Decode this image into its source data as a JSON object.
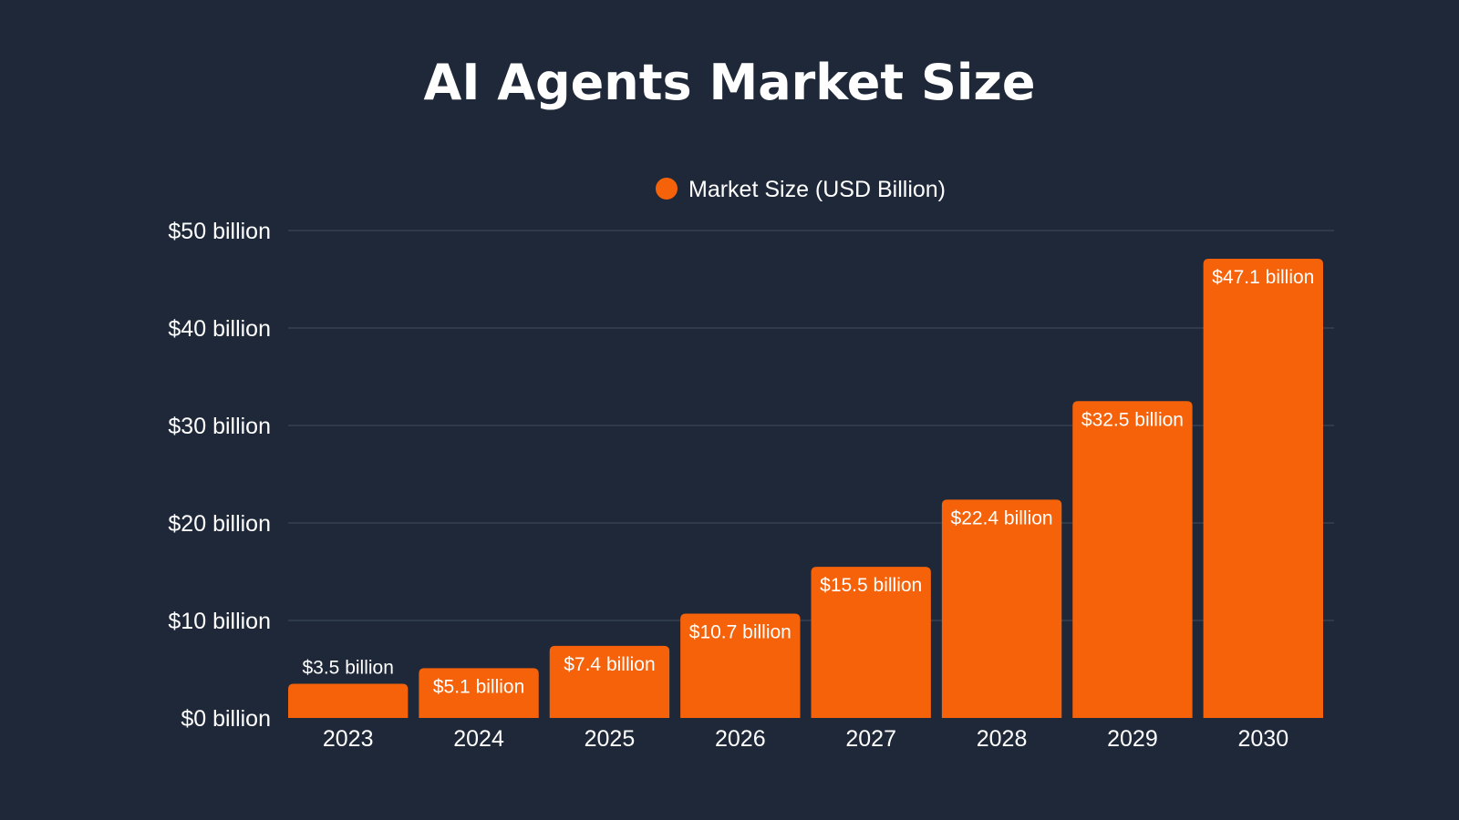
{
  "colors": {
    "background": "#1e2838",
    "bar": "#f5620a",
    "grid": "#3a4456",
    "text": "#ffffff"
  },
  "chart_data": {
    "type": "bar",
    "title": "AI Agents Market Size",
    "xlabel": "",
    "ylabel": "",
    "categories": [
      "2023",
      "2024",
      "2025",
      "2026",
      "2027",
      "2028",
      "2029",
      "2030"
    ],
    "series": [
      {
        "name": "Market Size (USD Billion)",
        "values": [
          3.5,
          5.1,
          7.4,
          10.7,
          15.5,
          22.4,
          32.5,
          47.1
        ],
        "labels": [
          "$3.5 billion",
          "$5.1 billion",
          "$7.4 billion",
          "$10.7 billion",
          "$15.5 billion",
          "$22.4 billion",
          "$32.5 billion",
          "$47.1 billion"
        ]
      }
    ],
    "ylim": [
      0,
      50
    ],
    "yticks": [
      0,
      10,
      20,
      30,
      40,
      50
    ],
    "ytick_labels": [
      "$0 billion",
      "$10 billion",
      "$20 billion",
      "$30 billion",
      "$40 billion",
      "$50 billion"
    ],
    "grid": true,
    "legend": "top-center"
  }
}
